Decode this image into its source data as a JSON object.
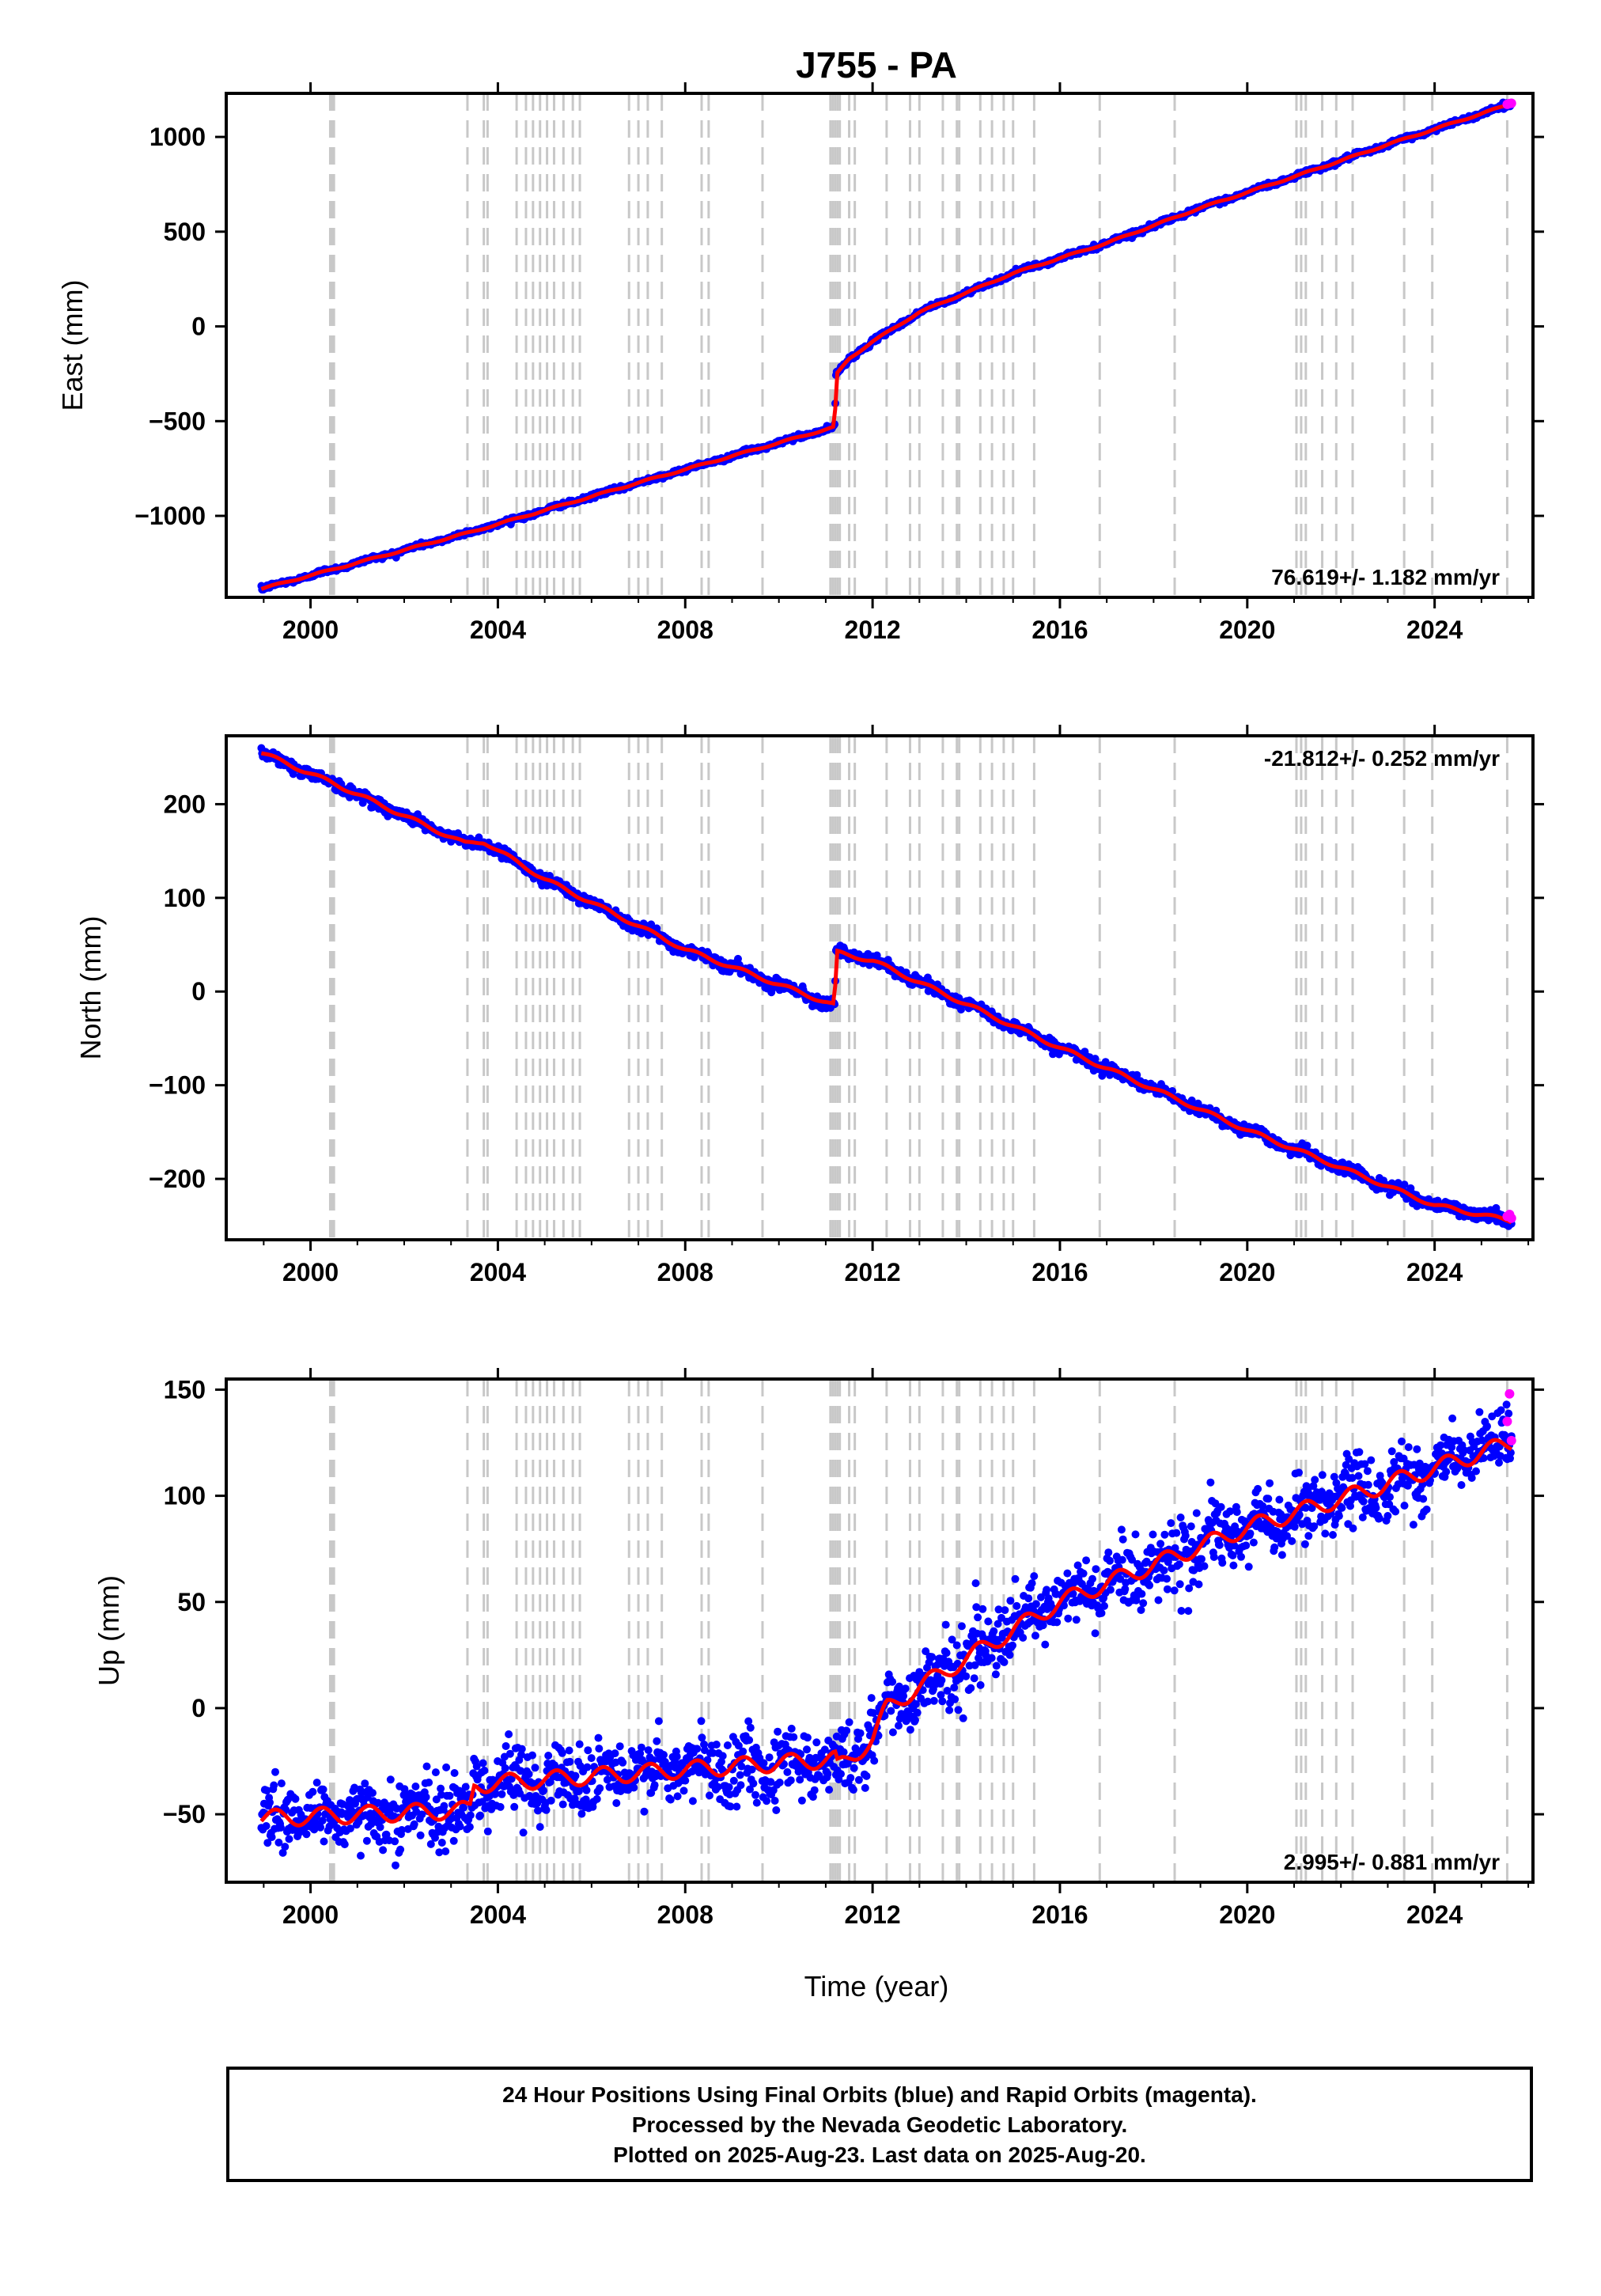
{
  "title": "J755 - PA",
  "xlabel": "Time (year)",
  "footer": {
    "line1": "24 Hour Positions Using Final Orbits (blue) and Rapid Orbits (magenta).",
    "line2": "Processed by the Nevada Geodetic Laboratory.",
    "line3": "Plotted on 2025-Aug-23. Last data on 2025-Aug-20."
  },
  "colors": {
    "final_orbits": "#0000ff",
    "rapid_orbits": "#ff00ff",
    "model_fit": "#ff0000",
    "equipment_change_lines": "#c8c8c8"
  },
  "chart_data": [
    {
      "type": "scatter",
      "ylabel": "East (mm)",
      "rate_annotation": "76.619+/- 1.182 mm/yr",
      "xlim": [
        1998.2,
        2026.1
      ],
      "ylim": [
        -1430,
        1230
      ],
      "xticks": [
        2000,
        2004,
        2008,
        2012,
        2016,
        2020,
        2024
      ],
      "yticks": [
        -1000,
        -500,
        0,
        500,
        1000
      ],
      "ytick_labels": [
        "−1000",
        "−500",
        "0",
        "500",
        "1000"
      ],
      "trend_knots": [
        [
          1998.95,
          -1385
        ],
        [
          2003.5,
          -1080
        ],
        [
          2007.0,
          -825
        ],
        [
          2011.2,
          -530
        ],
        [
          2011.21,
          -260
        ],
        [
          2011.5,
          -170
        ],
        [
          2012.0,
          -80
        ],
        [
          2013.0,
          75
        ],
        [
          2015.0,
          280
        ],
        [
          2017.0,
          440
        ],
        [
          2019.0,
          625
        ],
        [
          2021.0,
          790
        ],
        [
          2023.0,
          960
        ],
        [
          2025.64,
          1175
        ]
      ],
      "noise_mm": 6,
      "seasonal_mm": 4,
      "steps": []
    },
    {
      "type": "scatter",
      "ylabel": "North (mm)",
      "rate_annotation": "-21.812+/- 0.252 mm/yr",
      "xlim": [
        1998.2,
        2026.1
      ],
      "ylim": [
        -265,
        273
      ],
      "xticks": [
        2000,
        2004,
        2008,
        2012,
        2016,
        2020,
        2024
      ],
      "yticks": [
        -200,
        -100,
        0,
        100,
        200
      ],
      "ytick_labels": [
        "−200",
        "−100",
        "0",
        "100",
        "200"
      ],
      "trend_knots": [
        [
          1998.95,
          255
        ],
        [
          2000.5,
          222
        ],
        [
          2003.3,
          158
        ],
        [
          2003.7,
          160
        ],
        [
          2005.0,
          120
        ],
        [
          2008.0,
          45
        ],
        [
          2011.2,
          -15
        ],
        [
          2011.21,
          42
        ],
        [
          2012.0,
          33
        ],
        [
          2016.0,
          -60
        ],
        [
          2020.0,
          -148
        ],
        [
          2024.0,
          -228
        ],
        [
          2025.64,
          -245
        ]
      ],
      "noise_mm": 3,
      "seasonal_mm": 2,
      "steps": []
    },
    {
      "type": "scatter",
      "ylabel": "Up (mm)",
      "rate_annotation": "2.995+/- 0.881 mm/yr",
      "xlim": [
        1998.2,
        2026.1
      ],
      "ylim": [
        -82,
        155
      ],
      "xticks": [
        2000,
        2004,
        2008,
        2012,
        2016,
        2020,
        2024
      ],
      "yticks": [
        -50,
        0,
        50,
        100,
        150
      ],
      "ytick_labels": [
        "−50",
        "0",
        "50",
        "100",
        "150"
      ],
      "trend_knots": [
        [
          1998.95,
          -52
        ],
        [
          2003.4,
          -48
        ],
        [
          2003.5,
          -36
        ],
        [
          2011.2,
          -24
        ],
        [
          2011.25,
          -28
        ],
        [
          2012.0,
          -15
        ],
        [
          2012.3,
          0
        ],
        [
          2013.0,
          10
        ],
        [
          2016.0,
          50
        ],
        [
          2020.0,
          85
        ],
        [
          2022.5,
          102
        ],
        [
          2025.64,
          125
        ]
      ],
      "noise_mm": 8,
      "seasonal_mm": 4,
      "steps": []
    }
  ],
  "rapid_points": [
    {
      "panel": 0,
      "points": [
        [
          2025.55,
          1172
        ],
        [
          2025.6,
          1176
        ],
        [
          2025.64,
          1178
        ]
      ]
    },
    {
      "panel": 1,
      "points": [
        [
          2025.55,
          -240
        ],
        [
          2025.6,
          -238
        ],
        [
          2025.64,
          -242
        ]
      ]
    },
    {
      "panel": 2,
      "points": [
        [
          2025.55,
          135
        ],
        [
          2025.6,
          148
        ],
        [
          2025.64,
          126
        ]
      ]
    }
  ],
  "event_years": [
    2000.42,
    2000.45,
    2000.48,
    2000.5,
    2003.35,
    2003.7,
    2003.78,
    2004.4,
    2004.6,
    2004.75,
    2004.9,
    2005.05,
    2005.2,
    2005.4,
    2005.6,
    2005.75,
    2006.8,
    2007.0,
    2007.2,
    2007.5,
    2008.35,
    2008.5,
    2009.65,
    2011.1,
    2011.15,
    2011.2,
    2011.25,
    2011.3,
    2011.5,
    2011.62,
    2012.3,
    2012.8,
    2013.0,
    2013.5,
    2013.8,
    2013.85,
    2014.3,
    2014.55,
    2014.8,
    2015.0,
    2015.45,
    2016.85,
    2018.45,
    2021.05,
    2021.15,
    2021.25,
    2021.6,
    2021.9,
    2022.25,
    2023.35,
    2023.95,
    2025.55
  ]
}
